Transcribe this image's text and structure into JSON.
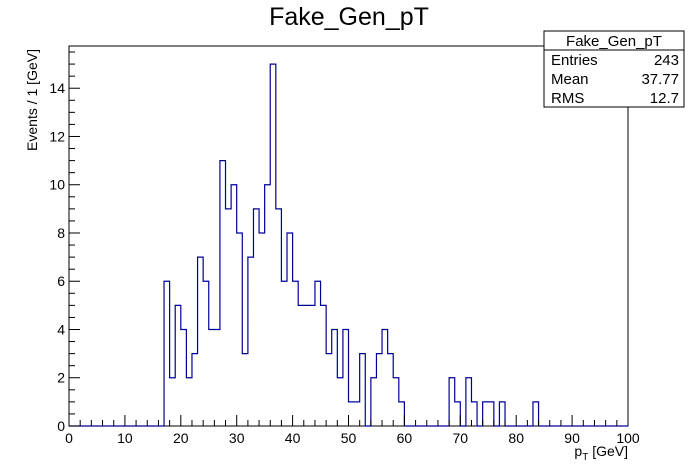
{
  "chart_data": {
    "type": "histogram",
    "title": "Fake_Gen_pT",
    "xlabel": "p_T [GeV]",
    "xlabel_main": "p",
    "xlabel_sub": "T",
    "xlabel_rest": " [GeV]",
    "ylabel": "Events / 1 [GeV]",
    "xlim": [
      0,
      100
    ],
    "ylim": [
      0,
      15.75
    ],
    "bin_width": 1,
    "x_ticks": [
      "0",
      "10",
      "20",
      "30",
      "40",
      "50",
      "60",
      "70",
      "80",
      "90",
      "100"
    ],
    "y_ticks": [
      "0",
      "2",
      "4",
      "6",
      "8",
      "10",
      "12",
      "14"
    ],
    "line_color": "#000099",
    "grid": false,
    "values": [
      0,
      0,
      0,
      0,
      0,
      0,
      0,
      0,
      0,
      0,
      0,
      0,
      0,
      0,
      0,
      0,
      0,
      6,
      2,
      5,
      4,
      2,
      3,
      7,
      6,
      4,
      4,
      11,
      9,
      10,
      8,
      3,
      7,
      9,
      8,
      10,
      15,
      9,
      6,
      8,
      6,
      5,
      5,
      5,
      6,
      5,
      3,
      4,
      2,
      4,
      1,
      1,
      3,
      0,
      2,
      3,
      4,
      3,
      2,
      1,
      0,
      0,
      0,
      0,
      0,
      0,
      0,
      0,
      2,
      1,
      0,
      2,
      1,
      0,
      1,
      1,
      0,
      1,
      0,
      0,
      0,
      0,
      0,
      1,
      0,
      0,
      0,
      0,
      0,
      0,
      0,
      0,
      0,
      0,
      0,
      0,
      0,
      0,
      0,
      0
    ]
  },
  "stats_box": {
    "title": "Fake_Gen_pT",
    "rows": [
      {
        "label": "Entries",
        "value": "243"
      },
      {
        "label": "Mean",
        "value": "37.77"
      },
      {
        "label": "RMS",
        "value": "12.7"
      }
    ]
  }
}
